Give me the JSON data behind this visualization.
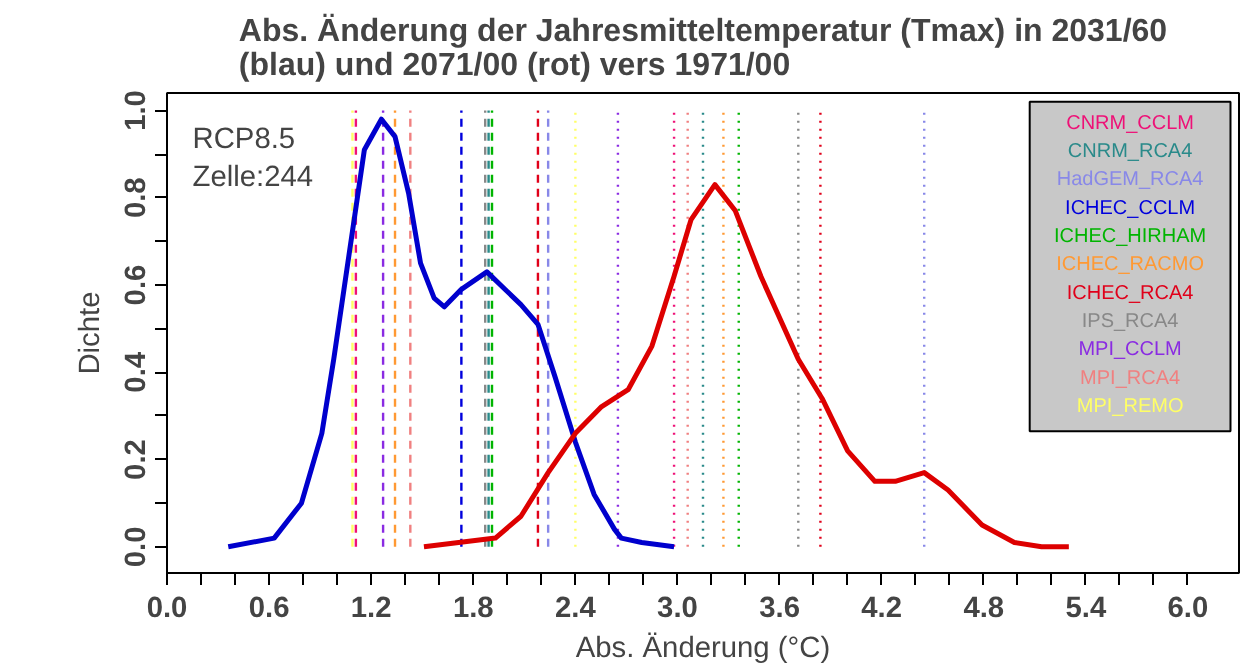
{
  "chart_data": {
    "type": "line",
    "title": "Abs. Änderung der Jahresmitteltemperatur (Tmax) in 2031/60\n(blau) und 2071/00 (rot) vers 1971/00",
    "xlabel": "Abs. Änderung (°C)",
    "ylabel": "Dichte",
    "annotations": [
      "RCP8.5\nZelle:244"
    ],
    "xlim": [
      0,
      6.3
    ],
    "ylim": [
      -0.06,
      1.04
    ],
    "xticks": [
      {
        "value": 0.0,
        "label": "0.0"
      },
      {
        "value": 0.2,
        "label": null
      },
      {
        "value": 0.4,
        "label": null
      },
      {
        "value": 0.6,
        "label": "0.6"
      },
      {
        "value": 0.8,
        "label": null
      },
      {
        "value": 1.0,
        "label": null
      },
      {
        "value": 1.2,
        "label": "1.2"
      },
      {
        "value": 1.4,
        "label": null
      },
      {
        "value": 1.6,
        "label": null
      },
      {
        "value": 1.8,
        "label": "1.8"
      },
      {
        "value": 2.0,
        "label": null
      },
      {
        "value": 2.2,
        "label": null
      },
      {
        "value": 2.4,
        "label": "2.4"
      },
      {
        "value": 2.6,
        "label": null
      },
      {
        "value": 2.8,
        "label": null
      },
      {
        "value": 3.0,
        "label": "3.0"
      },
      {
        "value": 3.2,
        "label": null
      },
      {
        "value": 3.4,
        "label": null
      },
      {
        "value": 3.6,
        "label": "3.6"
      },
      {
        "value": 3.8,
        "label": null
      },
      {
        "value": 4.0,
        "label": null
      },
      {
        "value": 4.2,
        "label": "4.2"
      },
      {
        "value": 4.4,
        "label": null
      },
      {
        "value": 4.6,
        "label": null
      },
      {
        "value": 4.8,
        "label": "4.8"
      },
      {
        "value": 5.0,
        "label": null
      },
      {
        "value": 5.2,
        "label": null
      },
      {
        "value": 5.4,
        "label": "5.4"
      },
      {
        "value": 5.6,
        "label": null
      },
      {
        "value": 5.8,
        "label": null
      },
      {
        "value": 6.0,
        "label": "6.0"
      }
    ],
    "yticks": [
      {
        "value": 0.0,
        "label": "0.0"
      },
      {
        "value": 0.1,
        "label": null
      },
      {
        "value": 0.2,
        "label": "0.2"
      },
      {
        "value": 0.3,
        "label": null
      },
      {
        "value": 0.4,
        "label": "0.4"
      },
      {
        "value": 0.5,
        "label": null
      },
      {
        "value": 0.6,
        "label": "0.6"
      },
      {
        "value": 0.7,
        "label": null
      },
      {
        "value": 0.8,
        "label": "0.8"
      },
      {
        "value": 0.9,
        "label": null
      },
      {
        "value": 1.0,
        "label": "1.0"
      }
    ],
    "grid": false,
    "legend": "top right",
    "marker": "none",
    "line_style": "solid",
    "series": [
      {
        "color": "#0000cd",
        "x": [
          0.36,
          0.63,
          0.79,
          0.91,
          0.98,
          1.04,
          1.1,
          1.16,
          1.26,
          1.34,
          1.42,
          1.49,
          1.57,
          1.63,
          1.73,
          1.88,
          2.08,
          2.18,
          2.28,
          2.4,
          2.51,
          2.63,
          2.67,
          2.79,
          2.98
        ],
        "values": [
          0,
          0.02,
          0.1,
          0.26,
          0.43,
          0.59,
          0.75,
          0.91,
          0.98,
          0.94,
          0.81,
          0.65,
          0.57,
          0.55,
          0.59,
          0.63,
          0.555,
          0.51,
          0.39,
          0.24,
          0.12,
          0.04,
          0.02,
          0.01,
          0
        ]
      },
      {
        "color": "#dd0000",
        "x": [
          1.51,
          1.93,
          2.08,
          2.24,
          2.4,
          2.55,
          2.71,
          2.85,
          2.98,
          3.08,
          3.22,
          3.34,
          3.49,
          3.71,
          3.85,
          4.0,
          4.16,
          4.28,
          4.45,
          4.59,
          4.79,
          4.98,
          5.14,
          5.3
        ],
        "values": [
          0,
          0.02,
          0.07,
          0.17,
          0.26,
          0.32,
          0.36,
          0.46,
          0.62,
          0.75,
          0.83,
          0.77,
          0.62,
          0.43,
          0.34,
          0.22,
          0.15,
          0.15,
          0.17,
          0.13,
          0.05,
          0.01,
          0,
          0
        ]
      }
    ],
    "ref_lines": [
      {
        "axis": "x",
        "value": 1.11,
        "label": "CNRM_CCLM",
        "color": "#ee1177",
        "line_style": "dashed"
      },
      {
        "axis": "x",
        "value": 1.89,
        "label": "CNRM_RCA4",
        "color": "#2a8a8a",
        "line_style": "dashed"
      },
      {
        "axis": "x",
        "value": 2.24,
        "label": "HadGEM_RCA4",
        "color": "#8888e8",
        "line_style": "dashed"
      },
      {
        "axis": "x",
        "value": 1.73,
        "label": "ICHEC_CCLM",
        "color": "#0000dd",
        "line_style": "dashed"
      },
      {
        "axis": "x",
        "value": 1.91,
        "label": "ICHEC_HIRHAM",
        "color": "#00b400",
        "line_style": "dashed"
      },
      {
        "axis": "x",
        "value": 1.34,
        "label": "ICHEC_RACMO",
        "color": "#ff9933",
        "line_style": "dashed"
      },
      {
        "axis": "x",
        "value": 2.18,
        "label": "ICHEC_RCA4",
        "color": "#e0001a",
        "line_style": "dashed"
      },
      {
        "axis": "x",
        "value": 1.87,
        "label": "IPS_RCA4",
        "color": "#888888",
        "line_style": "dashed"
      },
      {
        "axis": "x",
        "value": 1.27,
        "label": "MPI_CCLM",
        "color": "#8a2be2",
        "line_style": "dashed"
      },
      {
        "axis": "x",
        "value": 1.43,
        "label": "MPI_RCA4",
        "color": "#f08080",
        "line_style": "dashed"
      },
      {
        "axis": "x",
        "value": 1.09,
        "label": "MPI_REMO",
        "color": "#ffff66",
        "line_style": "dashed"
      },
      {
        "axis": "x",
        "value": 2.98,
        "color": "#ee1177",
        "line_style": "dotted"
      },
      {
        "axis": "x",
        "value": 3.15,
        "color": "#2a8a8a",
        "line_style": "dotted"
      },
      {
        "axis": "x",
        "value": 4.45,
        "color": "#8888e8",
        "line_style": "dotted"
      },
      {
        "axis": "x",
        "value": 3.36,
        "color": "#00b400",
        "line_style": "dotted"
      },
      {
        "axis": "x",
        "value": 3.27,
        "color": "#ff9933",
        "line_style": "dotted"
      },
      {
        "axis": "x",
        "value": 3.84,
        "color": "#e0001a",
        "line_style": "dotted"
      },
      {
        "axis": "x",
        "value": 3.71,
        "color": "#888888",
        "line_style": "dotted"
      },
      {
        "axis": "x",
        "value": 2.65,
        "color": "#8a2be2",
        "line_style": "dotted"
      },
      {
        "axis": "x",
        "value": 3.06,
        "color": "#f08080",
        "line_style": "dotted"
      },
      {
        "axis": "x",
        "value": 2.4,
        "color": "#ffff66",
        "line_style": "dotted"
      }
    ]
  }
}
